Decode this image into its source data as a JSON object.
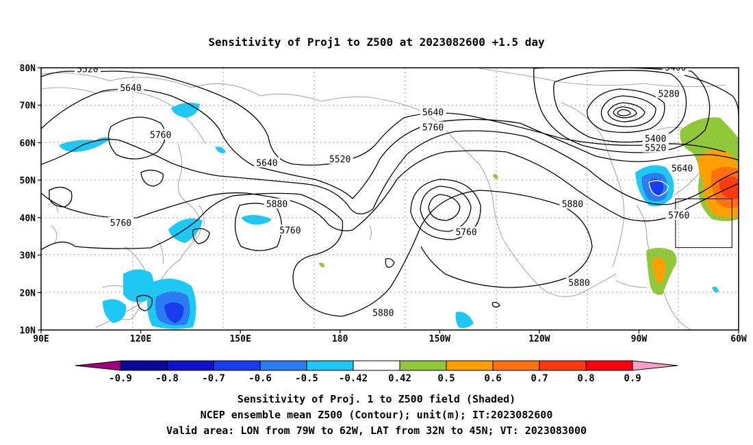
{
  "title": "Sensitivity of Proj1 to Z500 at 2023082600 +1.5 day",
  "map": {
    "lon_labels": [
      "90E",
      "120E",
      "150E",
      "180",
      "150W",
      "120W",
      "90W",
      "60W"
    ],
    "lat_labels": [
      "80N",
      "70N",
      "60N",
      "50N",
      "40N",
      "30N",
      "20N",
      "10N"
    ],
    "grid": true,
    "contour_unit": "m",
    "contour_labels": [
      {
        "text": "5520",
        "lon": 104,
        "lat": 79.5
      },
      {
        "text": "5640",
        "lon": 117,
        "lat": 74.5
      },
      {
        "text": "5760",
        "lon": 126,
        "lat": 62
      },
      {
        "text": "5640",
        "lon": 158,
        "lat": 54.5
      },
      {
        "text": "5520",
        "lon": 180,
        "lat": 55.5
      },
      {
        "text": "5640",
        "lon": 208,
        "lat": 68
      },
      {
        "text": "5760",
        "lon": 208,
        "lat": 64
      },
      {
        "text": "5880",
        "lon": 161,
        "lat": 43.5
      },
      {
        "text": "5760",
        "lon": 114,
        "lat": 38.5
      },
      {
        "text": "5760",
        "lon": 165,
        "lat": 36.5
      },
      {
        "text": "5760",
        "lon": 218,
        "lat": 36
      },
      {
        "text": "5880",
        "lon": 250,
        "lat": 43.5
      },
      {
        "text": "5880",
        "lon": 252,
        "lat": 22.5
      },
      {
        "text": "5880",
        "lon": 193,
        "lat": 14.5
      },
      {
        "text": "5400",
        "lon": 281,
        "lat": 80
      },
      {
        "text": "5280",
        "lon": 279,
        "lat": 73
      },
      {
        "text": "5400",
        "lon": 275,
        "lat": 61
      },
      {
        "text": "5520",
        "lon": 275,
        "lat": 58.5
      },
      {
        "text": "5640",
        "lon": 283,
        "lat": 53
      },
      {
        "text": "5760",
        "lon": 282,
        "lat": 40.5
      }
    ],
    "valid_area": {
      "lon_min": -79,
      "lon_max": -62,
      "lat_min": 32,
      "lat_max": 45
    }
  },
  "colorbar": {
    "labels": [
      "-0.9",
      "-0.8",
      "-0.7",
      "-0.6",
      "-0.5",
      "-0.42",
      "0.42",
      "0.5",
      "0.6",
      "0.7",
      "0.8",
      "0.9"
    ],
    "colors": [
      "#a0007a",
      "#08089a",
      "#1010c8",
      "#1a3cf0",
      "#2a7cf0",
      "#1ec8f5",
      "#ffffff",
      "#90c83a",
      "#ffa000",
      "#ff7010",
      "#ff3a10",
      "#ff0010",
      "#f4a0c8"
    ]
  },
  "captions": [
    "Sensitivity of Proj. 1 to Z500 field (Shaded)",
    "NCEP ensemble mean Z500 (Contour); unit(m); IT:2023082600",
    "Valid area: LON from 79W to 62W, LAT from 32N to 45N; VT: 2023083000"
  ]
}
